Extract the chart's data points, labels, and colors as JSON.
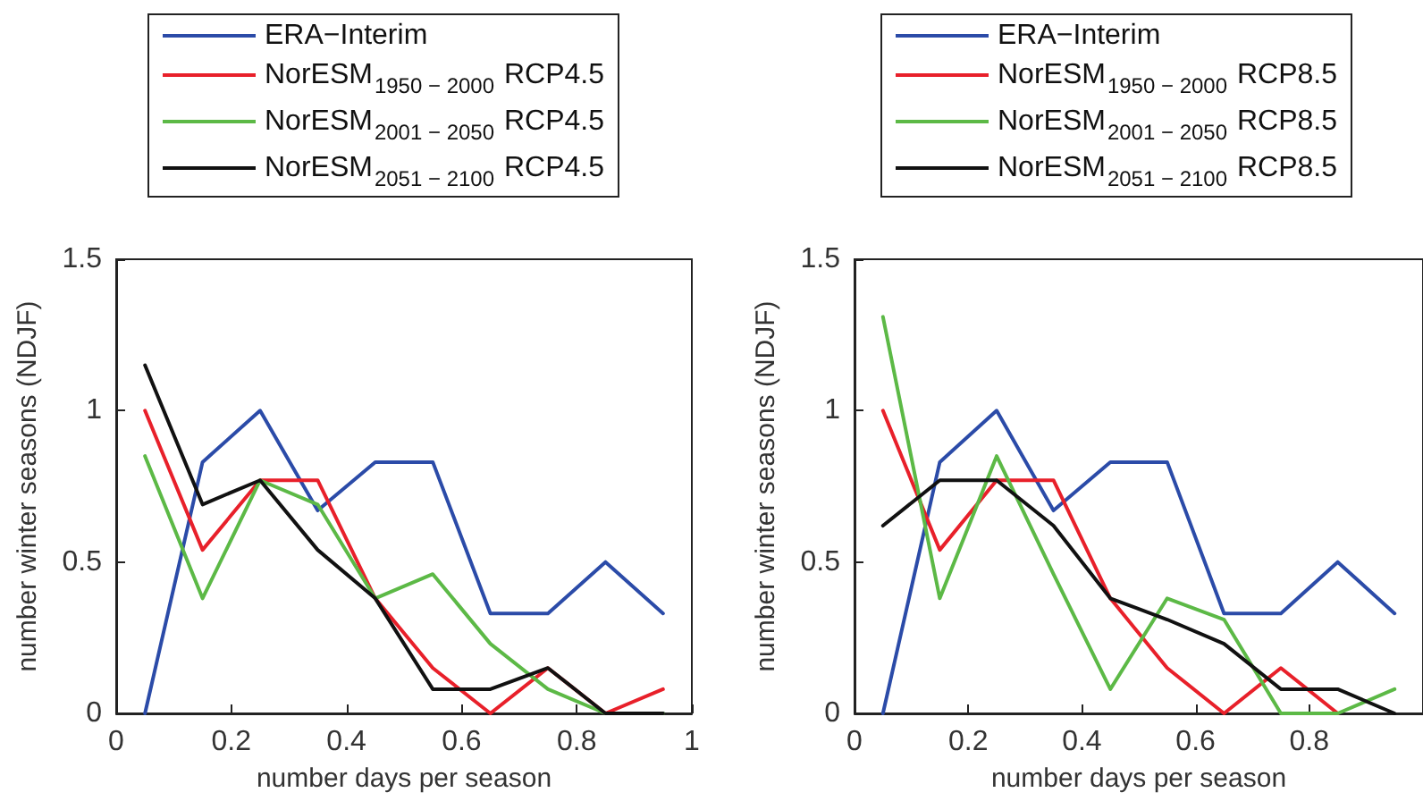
{
  "chart_data": [
    {
      "type": "line",
      "xlabel": "number days per season",
      "ylabel": "number winter seasons (NDJF)",
      "x": [
        0.05,
        0.15,
        0.25,
        0.35,
        0.45,
        0.55,
        0.65,
        0.75,
        0.85,
        0.95
      ],
      "xlim": [
        0,
        1
      ],
      "xticks": [
        0,
        0.2,
        0.4,
        0.6,
        0.8,
        1
      ],
      "ylim": [
        0,
        1.5
      ],
      "yticks": [
        0,
        0.5,
        1,
        1.5
      ],
      "grid": false,
      "legend": "top",
      "marker": "none",
      "line_style": "solid",
      "series": [
        {
          "name": "ERA−Interim",
          "color": "#2b4ba8",
          "values": [
            0,
            0.83,
            1,
            0.67,
            0.83,
            0.83,
            0.33,
            0.33,
            0.5,
            0.33
          ]
        },
        {
          "name": "NorESM$_{1950 − 2000}$ RCP4.5",
          "color": "#e8202a",
          "values": [
            1,
            0.54,
            0.77,
            0.77,
            0.38,
            0.15,
            0,
            0.15,
            0,
            0.08
          ]
        },
        {
          "name": "NorESM$_{2001 − 2050}$ RCP4.5",
          "color": "#5cb946",
          "values": [
            0.85,
            0.38,
            0.77,
            0.69,
            0.38,
            0.46,
            0.23,
            0.08,
            0,
            0
          ]
        },
        {
          "name": "NorESM$_{2051 − 2100}$ RCP4.5",
          "color": "#111111",
          "values": [
            1.15,
            0.69,
            0.77,
            0.54,
            0.38,
            0.08,
            0.08,
            0.15,
            0,
            0
          ]
        }
      ]
    },
    {
      "type": "line",
      "xlabel": "number days per season",
      "ylabel": "number winter seasons (NDJF)",
      "x": [
        0.05,
        0.15,
        0.25,
        0.35,
        0.45,
        0.55,
        0.65,
        0.75,
        0.85,
        0.95
      ],
      "xlim": [
        0,
        1
      ],
      "xticks": [
        0,
        0.2,
        0.4,
        0.6,
        0.8
      ],
      "ylim": [
        0,
        1.5
      ],
      "yticks": [
        0,
        0.5,
        1,
        1.5
      ],
      "grid": false,
      "legend": "top",
      "marker": "none",
      "line_style": "solid",
      "series": [
        {
          "name": "ERA−Interim",
          "color": "#2b4ba8",
          "values": [
            0,
            0.83,
            1,
            0.67,
            0.83,
            0.83,
            0.33,
            0.33,
            0.5,
            0.33
          ]
        },
        {
          "name": "NorESM$_{1950 − 2000}$ RCP8.5",
          "color": "#e8202a",
          "values": [
            1,
            0.54,
            0.77,
            0.77,
            0.38,
            0.15,
            0,
            0.15,
            0,
            null
          ]
        },
        {
          "name": "NorESM$_{2001 − 2050}$ RCP8.5",
          "color": "#5cb946",
          "values": [
            1.31,
            0.38,
            0.85,
            0.46,
            0.08,
            0.38,
            0.31,
            0,
            0,
            0.08
          ]
        },
        {
          "name": "NorESM$_{2051 − 2100}$ RCP8.5",
          "color": "#111111",
          "values": [
            0.62,
            0.77,
            0.77,
            0.62,
            0.38,
            0.31,
            0.23,
            0.08,
            0.08,
            0
          ]
        }
      ]
    }
  ]
}
